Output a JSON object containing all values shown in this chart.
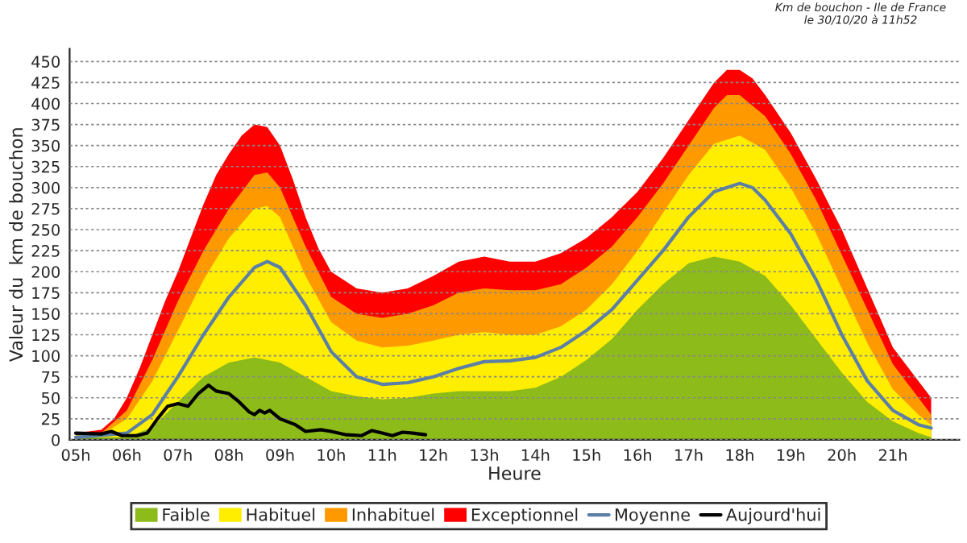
{
  "chart_data": {
    "type": "area",
    "title": "Km de bouchon - Ile de France\nle 30/10/20 à 11h52",
    "xlabel": "Heure",
    "ylabel": "Valeur du  km de bouchon",
    "xlim": [
      4.88,
      22.3
    ],
    "ylim": [
      0,
      465
    ],
    "xticks": [
      {
        "value": 5,
        "label": "05h"
      },
      {
        "value": 6,
        "label": "06h"
      },
      {
        "value": 7,
        "label": "07h"
      },
      {
        "value": 8,
        "label": "08h"
      },
      {
        "value": 9,
        "label": "09h"
      },
      {
        "value": 10,
        "label": "10h"
      },
      {
        "value": 11,
        "label": "11h"
      },
      {
        "value": 12,
        "label": "12h"
      },
      {
        "value": 13,
        "label": "13h"
      },
      {
        "value": 14,
        "label": "14h"
      },
      {
        "value": 15,
        "label": "15h"
      },
      {
        "value": 16,
        "label": "16h"
      },
      {
        "value": 17,
        "label": "17h"
      },
      {
        "value": 18,
        "label": "18h"
      },
      {
        "value": 19,
        "label": "19h"
      },
      {
        "value": 20,
        "label": "20h"
      },
      {
        "value": 21,
        "label": "21h"
      }
    ],
    "yticks": [
      0,
      25,
      50,
      75,
      100,
      125,
      150,
      175,
      200,
      225,
      250,
      275,
      300,
      325,
      350,
      375,
      400,
      425,
      450
    ],
    "grid": "y",
    "legend": "bottom",
    "marker": "none",
    "line_style": "solid",
    "series": [
      {
        "name": "Faible",
        "color": "#8dbb1a",
        "x": [
          5,
          6,
          6.5,
          7,
          7.5,
          8,
          8.5,
          9,
          9.5,
          10,
          10.5,
          11,
          11.5,
          12,
          12.5,
          13,
          13.5,
          14,
          14.5,
          15,
          15.5,
          16,
          16.5,
          17,
          17.5,
          18,
          18.5,
          19,
          19.5,
          20,
          20.5,
          21,
          21.5,
          21.75
        ],
        "values": [
          3,
          3,
          15,
          45,
          75,
          92,
          98,
          92,
          75,
          58,
          52,
          48,
          50,
          55,
          58,
          58,
          58,
          62,
          75,
          95,
          120,
          155,
          185,
          210,
          218,
          212,
          195,
          160,
          120,
          80,
          45,
          22,
          8,
          3
        ]
      },
      {
        "name": "Habituel",
        "color": "#ffee00",
        "x": [
          5,
          5.5,
          6,
          6.5,
          7,
          7.5,
          8,
          8.5,
          8.75,
          9,
          9.5,
          10,
          10.5,
          11,
          11.5,
          12,
          12.5,
          13,
          13.5,
          14,
          14.5,
          15,
          15.5,
          16,
          16.5,
          17,
          17.5,
          18,
          18.5,
          19,
          19.5,
          20,
          20.5,
          21,
          21.5,
          21.75
        ],
        "values": [
          5,
          6,
          25,
          70,
          130,
          190,
          240,
          275,
          278,
          265,
          195,
          140,
          118,
          110,
          112,
          118,
          125,
          128,
          125,
          125,
          135,
          155,
          185,
          225,
          270,
          315,
          352,
          362,
          345,
          300,
          245,
          180,
          115,
          60,
          30,
          18
        ]
      },
      {
        "name": "Inhabituel",
        "color": "#ff9900",
        "x": [
          5,
          5.5,
          6,
          6.5,
          7,
          7.5,
          8,
          8.5,
          8.75,
          9,
          9.5,
          10,
          10.5,
          11,
          11.5,
          12,
          12.5,
          13,
          13.5,
          14,
          14.5,
          15,
          15.5,
          16,
          16.5,
          17,
          17.5,
          17.75,
          18,
          18.5,
          19,
          19.5,
          20,
          20.5,
          21,
          21.5,
          21.75
        ],
        "values": [
          6,
          8,
          35,
          95,
          165,
          225,
          275,
          315,
          318,
          300,
          230,
          170,
          150,
          145,
          150,
          160,
          175,
          180,
          178,
          178,
          185,
          205,
          230,
          265,
          305,
          350,
          395,
          410,
          410,
          385,
          340,
          285,
          220,
          155,
          90,
          50,
          30
        ]
      },
      {
        "name": "Exceptionnel",
        "color": "#ff0000",
        "x": [
          5,
          5.5,
          5.75,
          6,
          6.25,
          6.5,
          6.75,
          7,
          7.25,
          7.5,
          7.75,
          8,
          8.25,
          8.5,
          8.75,
          9,
          9.25,
          9.5,
          9.75,
          10,
          10.5,
          11,
          11.5,
          12,
          12.5,
          13,
          13.5,
          14,
          14.5,
          15,
          15.5,
          16,
          16.5,
          17,
          17.5,
          17.75,
          18,
          18.25,
          18.5,
          19,
          19.5,
          20,
          20.5,
          21,
          21.5,
          21.75
        ],
        "values": [
          8,
          12,
          25,
          50,
          85,
          125,
          165,
          200,
          240,
          280,
          315,
          340,
          362,
          375,
          372,
          350,
          310,
          265,
          228,
          200,
          180,
          175,
          180,
          195,
          212,
          218,
          212,
          212,
          222,
          240,
          265,
          295,
          335,
          380,
          425,
          440,
          440,
          430,
          410,
          365,
          310,
          250,
          180,
          110,
          70,
          50
        ]
      },
      {
        "name": "Moyenne",
        "type": "line",
        "color": "#5b7fa6",
        "x": [
          5,
          6,
          6.5,
          7,
          7.5,
          8,
          8.5,
          8.75,
          9,
          9.5,
          10,
          10.5,
          11,
          11.5,
          12,
          12.5,
          13,
          13.5,
          14,
          14.5,
          15,
          15.5,
          16,
          16.5,
          17,
          17.5,
          18,
          18.25,
          18.5,
          19,
          19.5,
          20,
          20.5,
          21,
          21.5,
          21.75
        ],
        "values": [
          3,
          8,
          30,
          75,
          125,
          170,
          205,
          212,
          205,
          160,
          105,
          75,
          66,
          68,
          75,
          85,
          93,
          94,
          98,
          110,
          130,
          155,
          190,
          225,
          265,
          295,
          305,
          300,
          285,
          245,
          190,
          125,
          70,
          35,
          18,
          14
        ]
      },
      {
        "name": "Aujourd'hui",
        "type": "line",
        "color": "#000000",
        "x": [
          5,
          5.5,
          5.7,
          5.9,
          6.2,
          6.4,
          6.6,
          6.8,
          7,
          7.2,
          7.4,
          7.5,
          7.6,
          7.75,
          8,
          8.2,
          8.4,
          8.5,
          8.6,
          8.7,
          8.8,
          9,
          9.3,
          9.5,
          9.8,
          10,
          10.3,
          10.6,
          10.8,
          11,
          11.2,
          11.4,
          11.6,
          11.85
        ],
        "values": [
          8,
          7,
          10,
          5,
          5,
          8,
          25,
          40,
          43,
          40,
          55,
          60,
          65,
          58,
          55,
          45,
          33,
          30,
          35,
          32,
          35,
          25,
          18,
          10,
          12,
          10,
          6,
          5,
          11,
          8,
          5,
          9,
          8,
          6
        ]
      }
    ]
  }
}
